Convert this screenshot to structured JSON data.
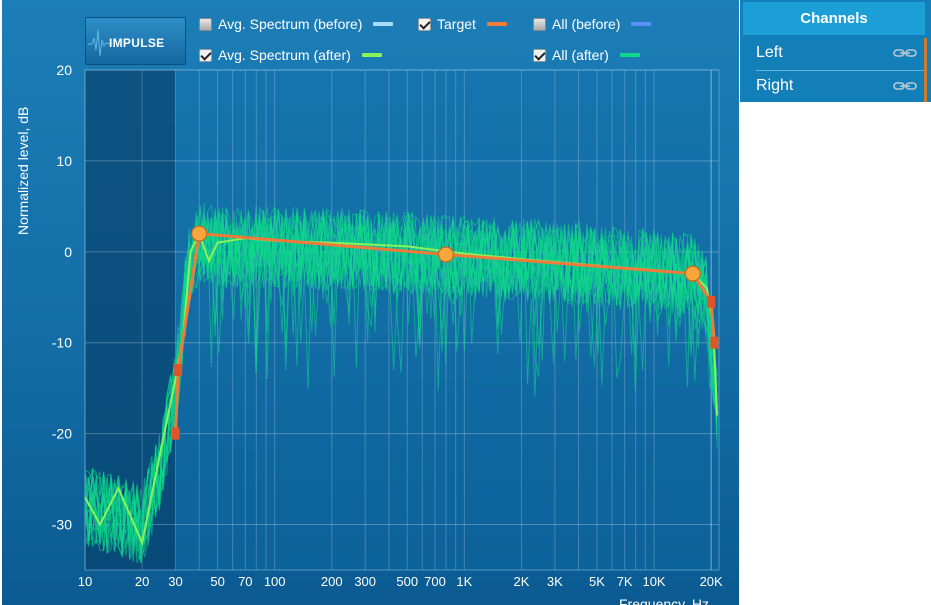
{
  "impulse_button": {
    "label": "IMPULSE"
  },
  "legend": [
    {
      "label": "Avg. Spectrum (before)",
      "checked": false,
      "color": "#a8dcf8"
    },
    {
      "label": "Target",
      "checked": true,
      "color": "#f07a3a"
    },
    {
      "label": "All (before)",
      "checked": false,
      "color": "#5c8ff5"
    },
    {
      "label": "Avg. Spectrum (after)",
      "checked": true,
      "color": "#8cf25a"
    },
    {
      "label": "All (after)",
      "checked": true,
      "color": "#10d88c"
    }
  ],
  "channels": {
    "header": "Channels",
    "items": [
      {
        "label": "Left",
        "icon": "link-icon"
      },
      {
        "label": "Right",
        "icon": "link-icon"
      }
    ],
    "accent_color": "#d07b2b"
  },
  "chart_data": {
    "type": "line",
    "xlabel": "Frequency, Hz",
    "ylabel": "Normalized level, dB",
    "x_scale": "log",
    "xlim": [
      10,
      22000
    ],
    "ylim": [
      -35,
      20
    ],
    "x_ticks": [
      10,
      20,
      30,
      50,
      70,
      100,
      200,
      300,
      500,
      700,
      1000,
      2000,
      3000,
      5000,
      7000,
      10000,
      20000
    ],
    "x_tick_labels": [
      "10",
      "20",
      "30",
      "50",
      "70",
      "100",
      "200",
      "300",
      "500",
      "700",
      "1K",
      "2K",
      "3K",
      "5K",
      "7K",
      "10K",
      "20K"
    ],
    "y_ticks": [
      -30,
      -20,
      -10,
      0,
      10,
      20
    ],
    "y_tick_labels": [
      "-30",
      "-20",
      "-10",
      "0",
      "10",
      "20"
    ],
    "grid": true,
    "excluded_band_hz": [
      10,
      30
    ],
    "series": [
      {
        "name": "Target",
        "color": "#f07a3a",
        "x": [
          30,
          31,
          40,
          800,
          16000,
          20000,
          20800
        ],
        "y": [
          -20,
          -13,
          2,
          -0.3,
          -2.4,
          -5.5,
          -10
        ]
      },
      {
        "name": "Avg. Spectrum (after)",
        "color": "#8cf25a",
        "x": [
          10,
          12,
          15,
          20,
          25,
          30,
          33,
          36,
          40,
          45,
          50,
          70,
          100,
          200,
          500,
          1000,
          2000,
          5000,
          10000,
          16000,
          19000,
          20500,
          21500
        ],
        "y": [
          -27,
          -30,
          -26,
          -32,
          -22,
          -14,
          -9,
          0,
          2,
          -1,
          1,
          1.5,
          1.2,
          1,
          0.6,
          -0.2,
          -0.8,
          -1.5,
          -2,
          -2.4,
          -4,
          -8,
          -18
        ]
      },
      {
        "name": "All (after)",
        "color": "#10d88c",
        "x": [
          10,
          15,
          20,
          25,
          30,
          35,
          40,
          50,
          100,
          300,
          1000,
          3000,
          10000,
          16000,
          19000,
          21500
        ],
        "y": [
          -28,
          -29,
          -30,
          -24,
          -15,
          -2,
          1,
          0.5,
          0.5,
          0.2,
          -0.5,
          -1,
          -2,
          -2.5,
          -5,
          -17
        ]
      }
    ],
    "control_points": [
      {
        "x": 40,
        "y": 2
      },
      {
        "x": 800,
        "y": -0.3
      },
      {
        "x": 16000,
        "y": -2.4
      }
    ]
  }
}
